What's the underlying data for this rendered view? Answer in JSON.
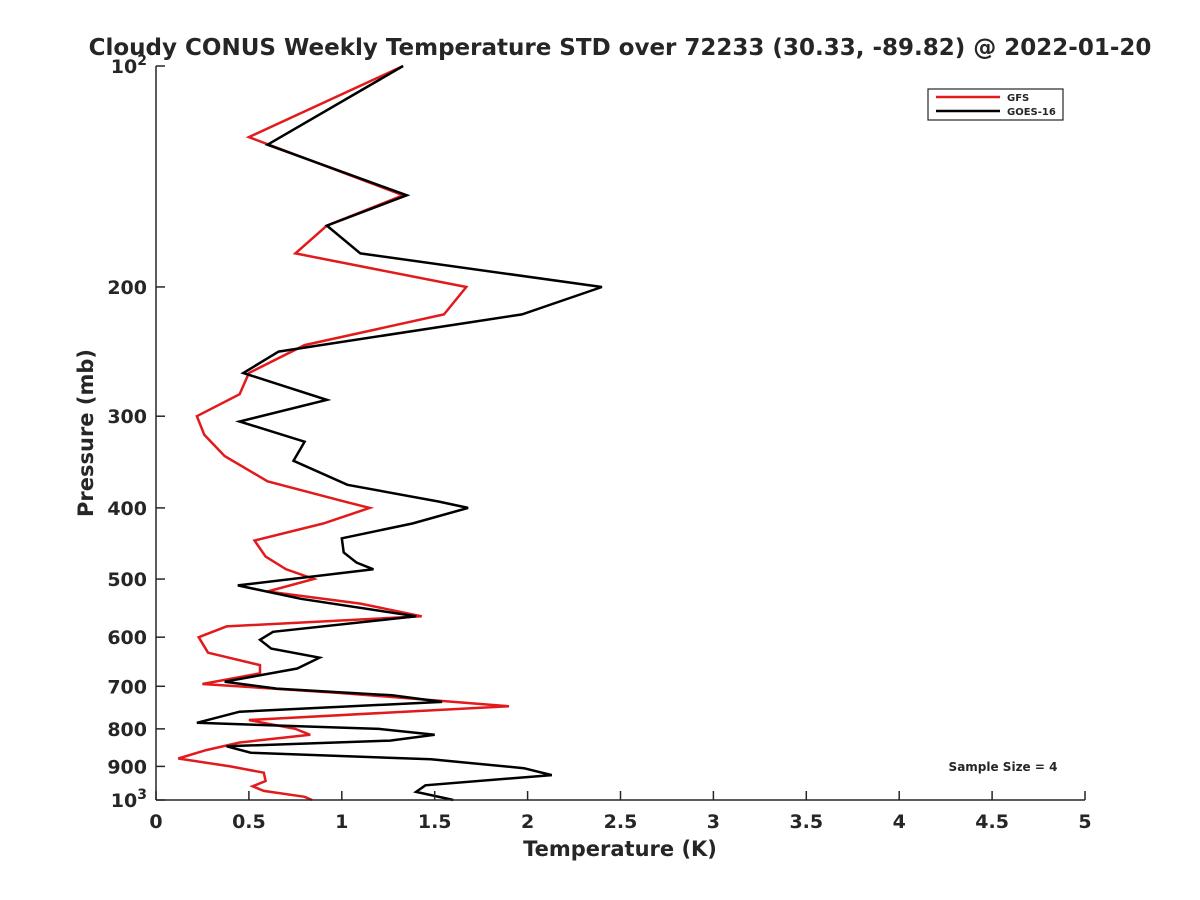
{
  "chart_data": {
    "type": "line",
    "title": "Cloudy CONUS Weekly Temperature STD over 72233 (30.33, -89.82) @ 2022-01-20",
    "xlabel": "Temperature (K)",
    "ylabel": "Pressure (mb)",
    "xlim": [
      0,
      5
    ],
    "ylim": [
      100,
      1000
    ],
    "yscale": "log",
    "y_reversed": true,
    "grid": false,
    "legend_position": "top-right",
    "x_ticks": [
      "0",
      "0.5",
      "1",
      "1.5",
      "2",
      "2.5",
      "3",
      "3.5",
      "4",
      "4.5",
      "5"
    ],
    "y_ticks": [
      {
        "value": 100,
        "base": "10",
        "exp": "2"
      },
      {
        "value": 200,
        "label": "200"
      },
      {
        "value": 300,
        "label": "300"
      },
      {
        "value": 400,
        "label": "400"
      },
      {
        "value": 500,
        "label": "500"
      },
      {
        "value": 600,
        "label": "600"
      },
      {
        "value": 700,
        "label": "700"
      },
      {
        "value": 800,
        "label": "800"
      },
      {
        "value": 900,
        "label": "900"
      },
      {
        "value": 1000,
        "base": "10",
        "exp": "3"
      }
    ],
    "annotation": "Sample Size = 4",
    "series": [
      {
        "name": "GFS",
        "color": "#e31a1c",
        "points": [
          [
            1.33,
            100
          ],
          [
            0.5,
            125
          ],
          [
            1.33,
            150
          ],
          [
            0.92,
            165
          ],
          [
            0.75,
            180
          ],
          [
            1.67,
            200
          ],
          [
            1.55,
            218
          ],
          [
            0.8,
            240
          ],
          [
            0.5,
            262
          ],
          [
            0.45,
            280
          ],
          [
            0.22,
            300
          ],
          [
            0.26,
            318
          ],
          [
            0.37,
            340
          ],
          [
            0.6,
            368
          ],
          [
            1.03,
            393
          ],
          [
            1.15,
            400
          ],
          [
            0.9,
            420
          ],
          [
            0.53,
            443
          ],
          [
            0.59,
            466
          ],
          [
            0.7,
            485
          ],
          [
            0.85,
            500
          ],
          [
            0.6,
            520
          ],
          [
            1.1,
            540
          ],
          [
            1.43,
            562
          ],
          [
            0.38,
            580
          ],
          [
            0.23,
            600
          ],
          [
            0.28,
            630
          ],
          [
            0.56,
            655
          ],
          [
            0.56,
            672
          ],
          [
            0.25,
            695
          ],
          [
            1.0,
            715
          ],
          [
            1.9,
            745
          ],
          [
            0.5,
            778
          ],
          [
            0.75,
            800
          ],
          [
            0.83,
            815
          ],
          [
            0.45,
            835
          ],
          [
            0.27,
            855
          ],
          [
            0.12,
            878
          ],
          [
            0.4,
            900
          ],
          [
            0.58,
            918
          ],
          [
            0.59,
            942
          ],
          [
            0.52,
            958
          ],
          [
            0.58,
            972
          ],
          [
            0.8,
            990
          ],
          [
            0.84,
            1000
          ]
        ]
      },
      {
        "name": "GOES-16",
        "color": "#000000",
        "points": [
          [
            1.33,
            100
          ],
          [
            0.6,
            128
          ],
          [
            1.35,
            150
          ],
          [
            0.92,
            165
          ],
          [
            1.1,
            180
          ],
          [
            2.4,
            200
          ],
          [
            1.97,
            218
          ],
          [
            0.66,
            245
          ],
          [
            0.47,
            262
          ],
          [
            0.92,
            285
          ],
          [
            0.45,
            305
          ],
          [
            0.8,
            325
          ],
          [
            0.74,
            345
          ],
          [
            1.03,
            372
          ],
          [
            1.52,
            392
          ],
          [
            1.68,
            400
          ],
          [
            1.38,
            420
          ],
          [
            1.0,
            440
          ],
          [
            1.01,
            460
          ],
          [
            1.08,
            475
          ],
          [
            1.17,
            485
          ],
          [
            0.44,
            510
          ],
          [
            0.78,
            532
          ],
          [
            1.4,
            562
          ],
          [
            0.63,
            590
          ],
          [
            0.56,
            605
          ],
          [
            0.62,
            622
          ],
          [
            0.88,
            640
          ],
          [
            0.76,
            662
          ],
          [
            0.37,
            690
          ],
          [
            0.65,
            705
          ],
          [
            1.27,
            720
          ],
          [
            1.54,
            735
          ],
          [
            0.45,
            758
          ],
          [
            0.22,
            785
          ],
          [
            1.2,
            800
          ],
          [
            1.5,
            815
          ],
          [
            1.26,
            830
          ],
          [
            0.38,
            845
          ],
          [
            0.51,
            862
          ],
          [
            1.48,
            880
          ],
          [
            1.98,
            905
          ],
          [
            2.13,
            925
          ],
          [
            1.45,
            955
          ],
          [
            1.4,
            975
          ],
          [
            1.6,
            1000
          ]
        ]
      }
    ]
  }
}
